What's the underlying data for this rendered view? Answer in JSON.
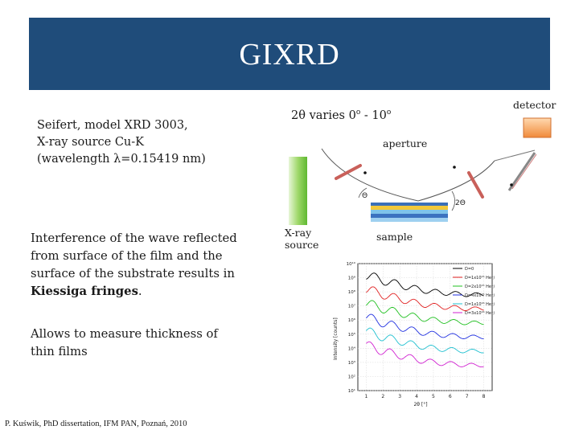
{
  "slide": {
    "title": "GIXRD",
    "spec_lines": [
      "Seifert, model XRD 3003,",
      "X-ray source Cu-K",
      "(wavelength λ=0.15419 nm)"
    ],
    "interference_lines": [
      "Interference of the wave reflected",
      "from surface of the film and the",
      "surface of the substrate results in"
    ],
    "interference_bold": "Kiessiga fringes",
    "interference_end": ".",
    "allows_lines": [
      "Allows to measure thickness of",
      "thin films"
    ],
    "citation": "P. Kuświk, PhD dissertation, IFM PAN, Poznań, 2010"
  },
  "diagram": {
    "two_theta_prefix": "2θ varies 0",
    "two_theta_sep": " - 10",
    "two_theta_deg": "o",
    "detector_label": "detector",
    "aperture_label": "aperture",
    "xray_label_line1": "X-ray",
    "xray_label_line2": "source",
    "sample_label": "sample",
    "theta_label": "Θ",
    "two_theta_label": "2Θ"
  },
  "chart_data": {
    "type": "line",
    "xlabel": "2θ [°]",
    "ylabel": "Intensity [counts]",
    "x_ticks": [
      "1",
      "2",
      "3",
      "4",
      "5",
      "6",
      "7",
      "8"
    ],
    "y_ticks": [
      "10¹",
      "10²",
      "10³",
      "10⁴",
      "10⁵",
      "10⁶",
      "10⁷",
      "10⁸",
      "10⁹",
      "10¹⁰"
    ],
    "xlim": [
      0.5,
      8.5
    ],
    "ylim_log10": [
      1,
      10
    ],
    "legend_position": "top-right",
    "series": [
      {
        "name": "D=0",
        "color": "#000000",
        "x": [
          1,
          2,
          3,
          4,
          5,
          6,
          7,
          8
        ],
        "y_log10": [
          9.2,
          8.8,
          8.5,
          8.2,
          8.0,
          7.9,
          7.8,
          7.8
        ]
      },
      {
        "name": "D=1x10¹⁵ He⁺/cm²",
        "color": "#e02020",
        "x": [
          1,
          2,
          3,
          4,
          5,
          6,
          7,
          8
        ],
        "y_log10": [
          8.2,
          7.8,
          7.5,
          7.2,
          7.0,
          6.9,
          6.8,
          6.8
        ]
      },
      {
        "name": "D=2x10¹⁵ He⁺/cm²",
        "color": "#20c020",
        "x": [
          1,
          2,
          3,
          4,
          5,
          6,
          7,
          8
        ],
        "y_log10": [
          7.2,
          6.8,
          6.5,
          6.2,
          6.0,
          5.9,
          5.8,
          5.8
        ]
      },
      {
        "name": "D=4x10¹⁵ He⁺/cm²",
        "color": "#2030e0",
        "x": [
          1,
          2,
          3,
          4,
          5,
          6,
          7,
          8
        ],
        "y_log10": [
          6.2,
          5.8,
          5.5,
          5.2,
          5.0,
          4.9,
          4.8,
          4.8
        ]
      },
      {
        "name": "D=1x10¹⁶ He⁺/cm²",
        "color": "#20c0d0",
        "x": [
          1,
          2,
          3,
          4,
          5,
          6,
          7,
          8
        ],
        "y_log10": [
          5.2,
          4.8,
          4.5,
          4.2,
          4.0,
          3.9,
          3.8,
          3.8
        ]
      },
      {
        "name": "D=3x10¹⁶ He⁺/cm²",
        "color": "#d020d0",
        "x": [
          1,
          2,
          3,
          4,
          5,
          6,
          7,
          8
        ],
        "y_log10": [
          4.2,
          3.8,
          3.5,
          3.2,
          3.0,
          2.9,
          2.8,
          2.8
        ]
      }
    ]
  }
}
